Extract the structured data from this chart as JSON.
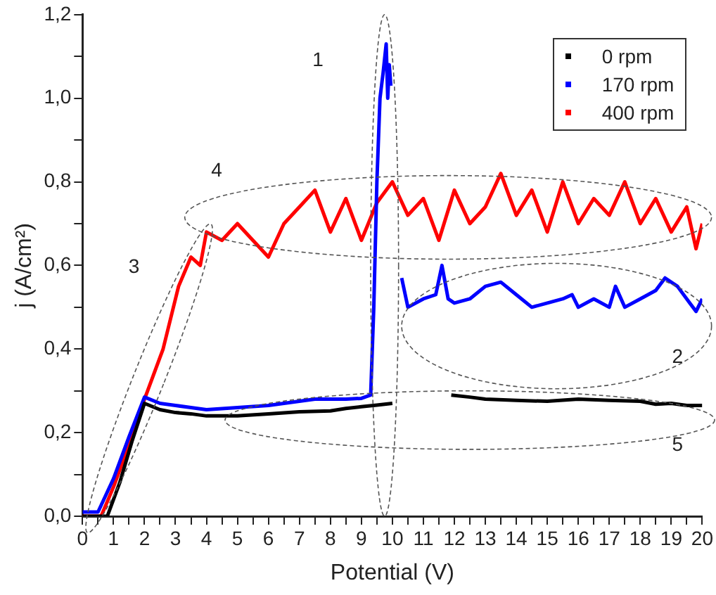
{
  "chart_data": {
    "type": "line",
    "xlabel": "Potential (V)",
    "ylabel": "j (A/cm²)",
    "xlim": [
      0,
      20
    ],
    "ylim": [
      0,
      1.2
    ],
    "xticks": [
      0,
      {
        "value": 0.5,
        "label": null
      },
      1,
      {
        "value": 1.5,
        "label": null
      },
      2,
      {
        "value": 2.5,
        "label": null
      },
      3,
      {
        "value": 3.5,
        "label": null
      },
      4,
      {
        "value": 4.5,
        "label": null
      },
      5,
      {
        "value": 5.5,
        "label": null
      },
      6,
      {
        "value": 6.5,
        "label": null
      },
      7,
      {
        "value": 7.5,
        "label": null
      },
      8,
      {
        "value": 8.5,
        "label": null
      },
      9,
      {
        "value": 9.5,
        "label": null
      },
      10,
      {
        "value": 10.5,
        "label": null
      },
      11,
      {
        "value": 11.5,
        "label": null
      },
      12,
      {
        "value": 12.5,
        "label": null
      },
      13,
      {
        "value": 13.5,
        "label": null
      },
      14,
      {
        "value": 14.5,
        "label": null
      },
      15,
      {
        "value": 15.5,
        "label": null
      },
      16,
      {
        "value": 16.5,
        "label": null
      },
      17,
      {
        "value": 17.5,
        "label": null
      },
      18,
      {
        "value": 18.5,
        "label": null
      },
      19,
      {
        "value": 19.5,
        "label": null
      },
      20
    ],
    "yticks": [
      {
        "value": 0,
        "label": "0,0"
      },
      {
        "value": 0.1,
        "label": null
      },
      {
        "value": 0.2,
        "label": "0,2"
      },
      {
        "value": 0.3,
        "label": null
      },
      {
        "value": 0.4,
        "label": "0,4"
      },
      {
        "value": 0.5,
        "label": null
      },
      {
        "value": 0.6,
        "label": "0,6"
      },
      {
        "value": 0.7,
        "label": null
      },
      {
        "value": 0.8,
        "label": "0,8"
      },
      {
        "value": 0.9,
        "label": null
      },
      {
        "value": 1.0,
        "label": "1,0"
      },
      {
        "value": 1.1,
        "label": null
      },
      {
        "value": 1.2,
        "label": "1,2"
      }
    ],
    "grid": false,
    "legend": "top right",
    "line_style": "solid",
    "series": [
      {
        "name": "0 rpm",
        "color": "#000000",
        "x": [
          0,
          0.8,
          1.2,
          1.6,
          2.0,
          2.5,
          3.0,
          3.5,
          4.0,
          5.0,
          6.0,
          7.0,
          8.0,
          8.5,
          9.0,
          9.5,
          10.0,
          11.0,
          11.9,
          12.5,
          13.0,
          14.0,
          15.0,
          16.0,
          17.0,
          18.0,
          18.5,
          19.0,
          19.5,
          20.0
        ],
        "values": [
          0,
          0,
          0.08,
          0.18,
          0.27,
          0.255,
          0.248,
          0.245,
          0.24,
          0.24,
          0.245,
          0.25,
          0.252,
          0.258,
          0.262,
          0.266,
          0.27,
          null,
          0.29,
          0.285,
          0.28,
          0.277,
          0.275,
          0.28,
          0.277,
          0.275,
          0.268,
          0.27,
          0.265,
          0.265
        ]
      },
      {
        "name": "170 rpm",
        "color": "#0000ff",
        "x": [
          0,
          0.5,
          1.0,
          1.5,
          2.0,
          2.5,
          3.0,
          3.5,
          4.0,
          5.0,
          6.0,
          7.0,
          7.5,
          8.0,
          8.5,
          9.0,
          9.3,
          9.4,
          9.5,
          9.6,
          9.7,
          9.8,
          9.85,
          9.9,
          9.95,
          10.1,
          10.3,
          10.5,
          11.0,
          11.4,
          11.6,
          11.8,
          12.0,
          12.5,
          13.0,
          13.5,
          14.0,
          14.5,
          15.0,
          15.5,
          15.8,
          16.0,
          16.5,
          17.0,
          17.2,
          17.5,
          18.0,
          18.5,
          18.8,
          19.2,
          19.6,
          19.8,
          20.0
        ],
        "values": [
          0.01,
          0.01,
          0.09,
          0.19,
          0.285,
          0.27,
          0.265,
          0.26,
          0.255,
          0.26,
          0.265,
          0.275,
          0.28,
          0.28,
          0.28,
          0.282,
          0.29,
          0.5,
          0.8,
          1.0,
          1.06,
          1.13,
          1.0,
          1.08,
          1.03,
          null,
          0.57,
          0.5,
          0.52,
          0.53,
          0.6,
          0.52,
          0.51,
          0.52,
          0.55,
          0.56,
          0.53,
          0.5,
          0.51,
          0.52,
          0.53,
          0.5,
          0.52,
          0.5,
          0.55,
          0.5,
          0.52,
          0.54,
          0.57,
          0.55,
          0.51,
          0.49,
          0.52
        ]
      },
      {
        "name": "400 rpm",
        "color": "#ff0000",
        "x": [
          0,
          0.6,
          1.0,
          1.5,
          2.0,
          2.6,
          3.1,
          3.5,
          3.8,
          4.0,
          4.5,
          5.0,
          5.5,
          6.0,
          6.5,
          7.0,
          7.5,
          8.0,
          8.5,
          9.0,
          9.5,
          10.0,
          10.5,
          11.0,
          11.5,
          12.0,
          12.5,
          13.0,
          13.5,
          14.0,
          14.5,
          15.0,
          15.5,
          16.0,
          16.5,
          17.0,
          17.5,
          18.0,
          18.5,
          19.0,
          19.5,
          19.8,
          20.0
        ],
        "values": [
          0,
          0,
          0.07,
          0.17,
          0.28,
          0.4,
          0.55,
          0.62,
          0.6,
          0.68,
          0.66,
          0.7,
          0.66,
          0.62,
          0.7,
          0.74,
          0.78,
          0.68,
          0.76,
          0.66,
          0.75,
          0.8,
          0.72,
          0.76,
          0.66,
          0.78,
          0.7,
          0.74,
          0.82,
          0.72,
          0.78,
          0.68,
          0.8,
          0.7,
          0.76,
          0.72,
          0.8,
          0.7,
          0.76,
          0.68,
          0.74,
          0.64,
          0.7
        ]
      }
    ],
    "annotations": [
      "1",
      "2",
      "3",
      "4",
      "5"
    ]
  }
}
